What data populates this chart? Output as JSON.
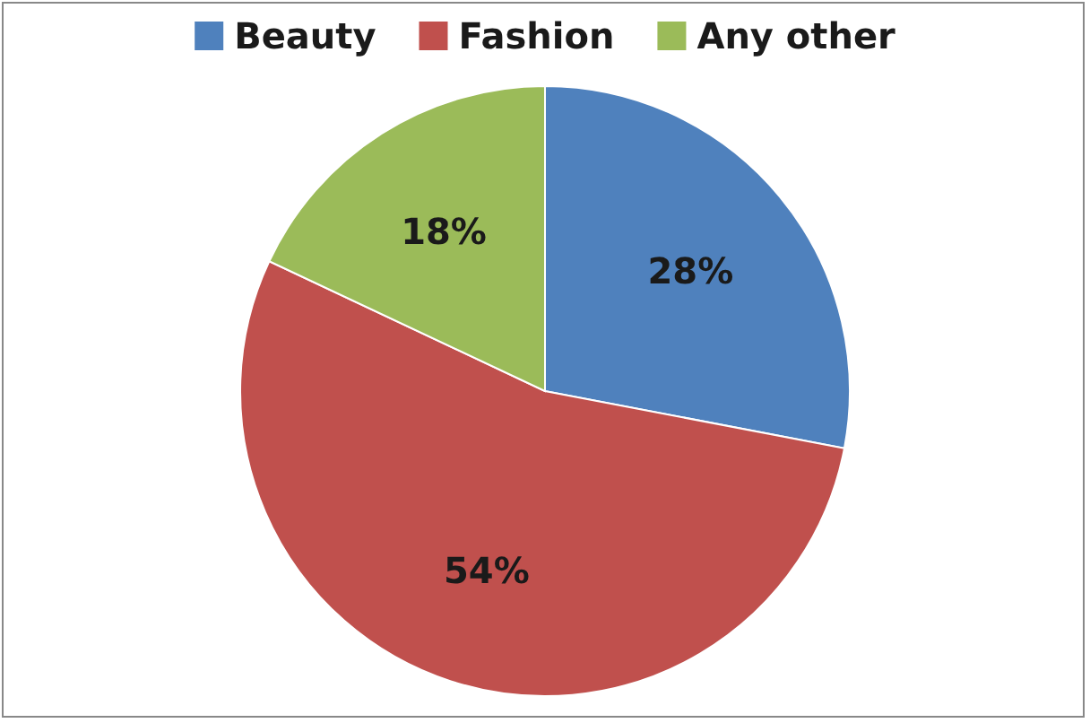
{
  "chart_data": {
    "type": "pie",
    "categories": [
      "Beauty",
      "Fashion",
      "Any other"
    ],
    "values": [
      28,
      54,
      18
    ],
    "colors": [
      "#4f81bd",
      "#c0504d",
      "#9bbb59"
    ],
    "value_labels": [
      "28%",
      "54%",
      "18%"
    ],
    "legend": "top"
  }
}
